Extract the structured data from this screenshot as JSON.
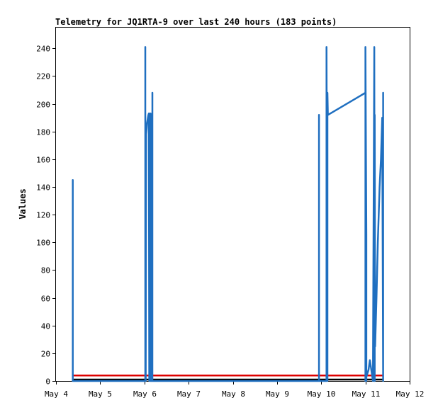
{
  "chart_data": {
    "type": "line",
    "title": "Telemetry for JQ1RTA-9 over last 240 hours (183 points)",
    "xlabel": "",
    "ylabel": "Values",
    "xlim": [
      "May 4",
      "May 12"
    ],
    "ylim": [
      0,
      255
    ],
    "grid": false,
    "legend": "none",
    "x_ticks": [
      "May 4",
      "May 5",
      "May 6",
      "May 7",
      "May 8",
      "May 9",
      "May 10",
      "May 11",
      "May 12"
    ],
    "y_ticks": [
      0,
      20,
      40,
      60,
      80,
      100,
      120,
      140,
      160,
      180,
      200,
      220,
      240
    ],
    "series": [
      {
        "color": "#1f6fc0",
        "x": [
          4.38,
          4.38,
          4.38,
          6.02,
          6.02,
          6.02,
          6.03,
          6.03,
          6.04,
          6.05,
          6.06,
          6.07,
          6.08,
          6.09,
          6.1,
          6.11,
          6.12,
          6.13,
          6.14,
          6.14,
          6.18,
          6.18,
          6.18,
          9.95,
          9.95,
          9.95,
          10.12,
          10.12,
          10.14,
          10.14,
          10.15,
          11.0,
          11.0,
          11.0,
          11.02,
          11.02,
          11.02,
          11.07,
          11.1,
          11.17,
          11.2,
          11.21,
          11.21,
          11.22,
          11.25,
          11.28,
          11.32,
          11.35,
          11.38,
          11.4,
          11.4,
          11.4
        ],
        "y": [
          0,
          145,
          0,
          0,
          241,
          0,
          145,
          0,
          178,
          182,
          186,
          188,
          190,
          192,
          193,
          0,
          193,
          0,
          193,
          0,
          0,
          208,
          0,
          0,
          192,
          0,
          0,
          241,
          0,
          208,
          192,
          208,
          0,
          241,
          105,
          0,
          3,
          8,
          15,
          0,
          241,
          0,
          192,
          25,
          60,
          100,
          140,
          160,
          190,
          0,
          208,
          0
        ]
      },
      {
        "color": "#dd0000",
        "x": [
          4.38,
          11.4
        ],
        "y": [
          4,
          4
        ]
      },
      {
        "color": "#000000",
        "x": [
          4.38,
          11.4
        ],
        "y": [
          1,
          1
        ]
      }
    ]
  }
}
